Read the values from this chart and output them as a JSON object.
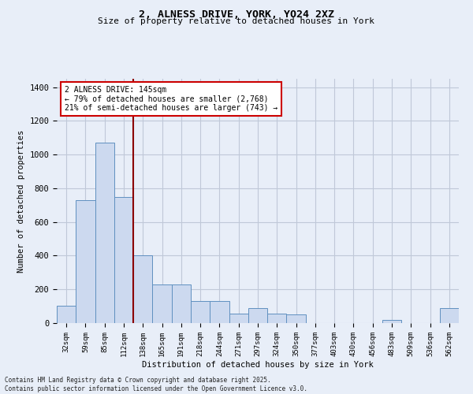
{
  "title_line1": "2, ALNESS DRIVE, YORK, YO24 2XZ",
  "title_line2": "Size of property relative to detached houses in York",
  "xlabel": "Distribution of detached houses by size in York",
  "ylabel": "Number of detached properties",
  "categories": [
    "32sqm",
    "59sqm",
    "85sqm",
    "112sqm",
    "138sqm",
    "165sqm",
    "191sqm",
    "218sqm",
    "244sqm",
    "271sqm",
    "297sqm",
    "324sqm",
    "350sqm",
    "377sqm",
    "403sqm",
    "430sqm",
    "456sqm",
    "483sqm",
    "509sqm",
    "536sqm",
    "562sqm"
  ],
  "values": [
    105,
    730,
    1070,
    750,
    400,
    230,
    230,
    130,
    130,
    55,
    90,
    55,
    50,
    0,
    0,
    0,
    0,
    18,
    0,
    0,
    90
  ],
  "bar_color": "#ccd9ef",
  "bar_edge_color": "#6090c0",
  "vline_x": 3.5,
  "annotation_text_line1": "2 ALNESS DRIVE: 145sqm",
  "annotation_text_line2": "← 79% of detached houses are smaller (2,768)",
  "annotation_text_line3": "21% of semi-detached houses are larger (743) →",
  "annotation_box_color": "#ffffff",
  "annotation_box_edge_color": "#cc0000",
  "vline_color": "#8b0000",
  "ylim": [
    0,
    1450
  ],
  "yticks": [
    0,
    200,
    400,
    600,
    800,
    1000,
    1200,
    1400
  ],
  "grid_color": "#c0c8d8",
  "background_color": "#e8eef8",
  "footer_line1": "Contains HM Land Registry data © Crown copyright and database right 2025.",
  "footer_line2": "Contains public sector information licensed under the Open Government Licence v3.0."
}
